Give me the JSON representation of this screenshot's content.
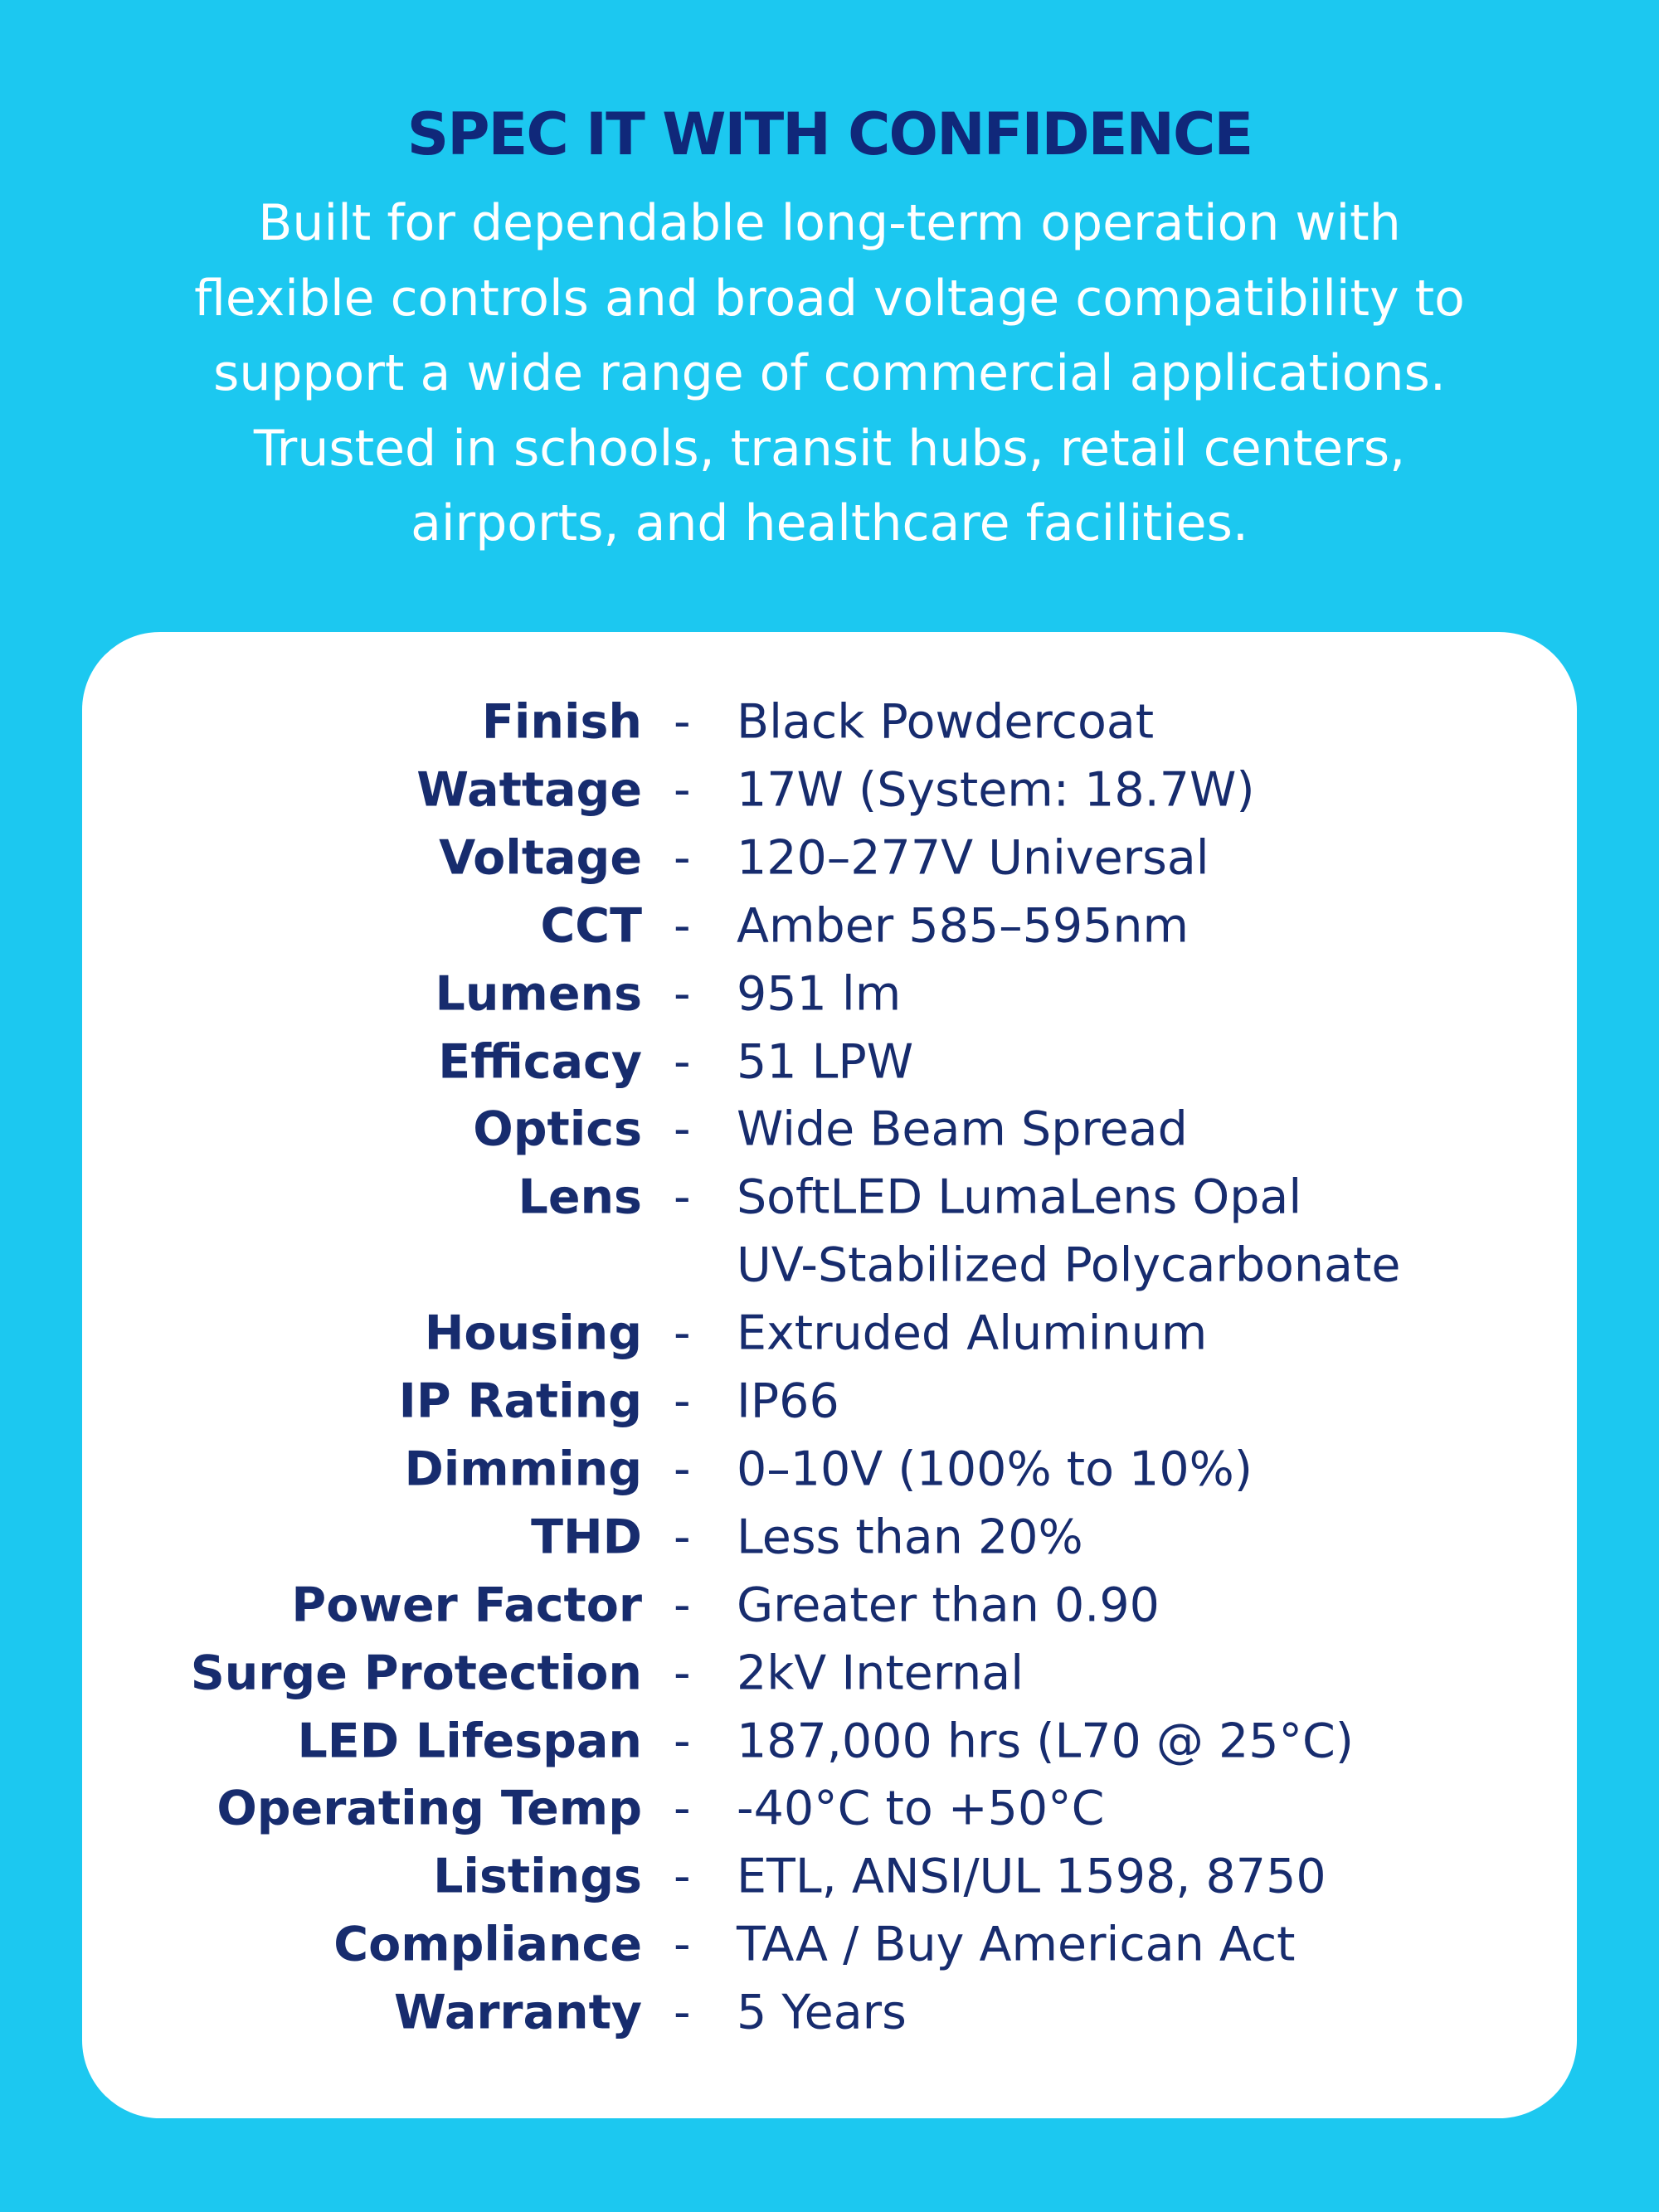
{
  "header": {
    "title": "SPEC IT WITH CONFIDENCE",
    "description_lines": [
      "Built for dependable long-term operation with",
      "flexible controls and broad voltage compatibility to",
      "support a wide range of commercial applications.",
      "Trusted in schools, transit hubs, retail centers,",
      "airports, and healthcare facilities."
    ]
  },
  "specs": {
    "separator": "-",
    "rows": [
      {
        "label": "Finish",
        "lines": [
          "Black Powdercoat"
        ]
      },
      {
        "label": "Wattage",
        "lines": [
          "17W (System: 18.7W)"
        ]
      },
      {
        "label": "Voltage",
        "lines": [
          "120–277V Universal"
        ]
      },
      {
        "label": "CCT",
        "lines": [
          "Amber 585–595nm"
        ]
      },
      {
        "label": "Lumens",
        "lines": [
          "951 lm"
        ]
      },
      {
        "label": "Efficacy",
        "lines": [
          "51 LPW"
        ]
      },
      {
        "label": "Optics",
        "lines": [
          "Wide Beam Spread"
        ]
      },
      {
        "label": "Lens",
        "lines": [
          "SoftLED LumaLens Opal",
          "UV-Stabilized Polycarbonate"
        ]
      },
      {
        "label": "Housing",
        "lines": [
          "Extruded Aluminum"
        ]
      },
      {
        "label": "IP Rating",
        "lines": [
          "IP66"
        ]
      },
      {
        "label": "Dimming",
        "lines": [
          "0–10V (100% to 10%)"
        ]
      },
      {
        "label": "THD",
        "lines": [
          "Less than 20%"
        ]
      },
      {
        "label": "Power Factor",
        "lines": [
          "Greater than 0.90"
        ]
      },
      {
        "label": "Surge Protection",
        "lines": [
          "2kV Internal"
        ]
      },
      {
        "label": "LED Lifespan",
        "lines": [
          "187,000 hrs (L70 @ 25°C)"
        ]
      },
      {
        "label": "Operating Temp",
        "lines": [
          "-40°C to +50°C"
        ]
      },
      {
        "label": "Listings",
        "lines": [
          "ETL, ANSI/UL 1598, 8750"
        ]
      },
      {
        "label": "Compliance",
        "lines": [
          "TAA / Buy American Act"
        ]
      },
      {
        "label": "Warranty",
        "lines": [
          "5 Years"
        ]
      }
    ]
  }
}
